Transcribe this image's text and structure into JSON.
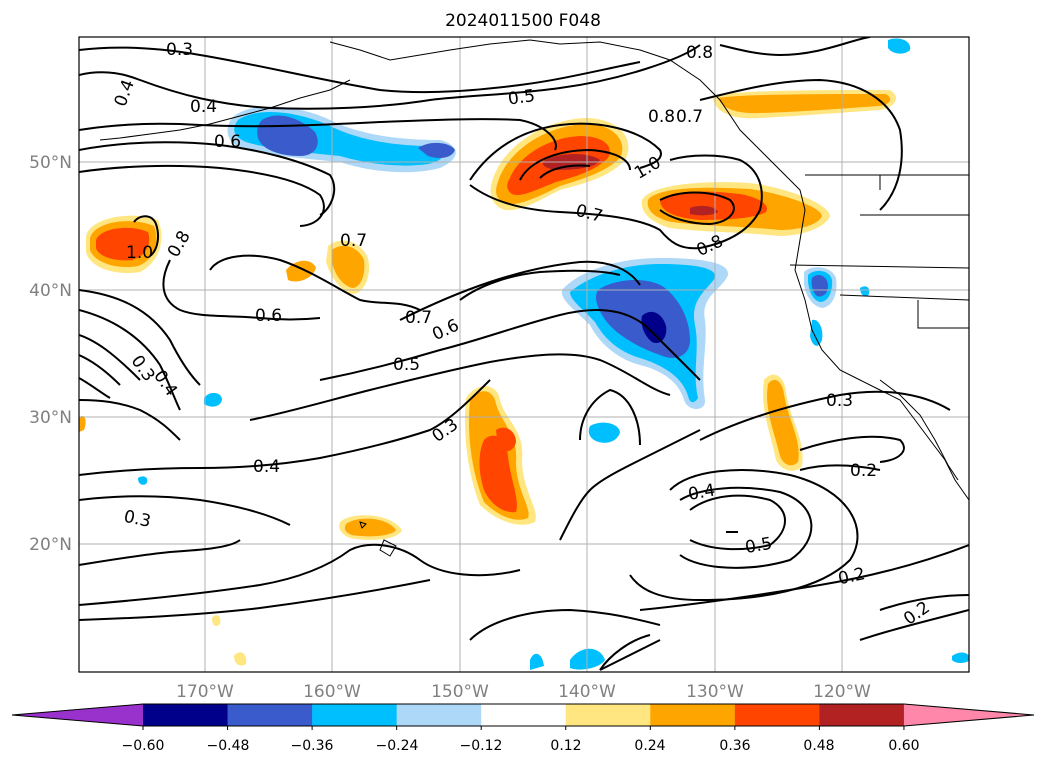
{
  "title": "2024011500 F048",
  "map": {
    "lat_labels": [
      "50°N",
      "40°N",
      "30°N",
      "20°N"
    ],
    "lon_labels": [
      "170°W",
      "160°W",
      "150°W",
      "140°W",
      "130°W",
      "120°W"
    ],
    "contour_labels": [
      "0.3",
      "0.4",
      "0.4",
      "0.6",
      "0.5",
      "0.8",
      "0.8",
      "0.7",
      "1.0",
      "0.7",
      "0.8",
      "1.0",
      "0.8",
      "0.7",
      "0.6",
      "0.7",
      "0.6",
      "0.5",
      "0.3",
      "0.4",
      "0.3",
      "0.4",
      "0.3",
      "0.4",
      "0.2",
      "0.5",
      "0.2",
      "0.2",
      "0.3"
    ]
  },
  "colorbar": {
    "ticks": [
      "−0.60",
      "−0.48",
      "−0.36",
      "−0.24",
      "−0.12",
      "0.12",
      "0.24",
      "0.36",
      "0.48",
      "0.60"
    ],
    "colors": [
      "#9932cc",
      "#00008b",
      "#3a5bcb",
      "#00bfff",
      "#add8f7",
      "#ffffff",
      "#ffe680",
      "#ffa500",
      "#ff4500",
      "#b22222",
      "#ff88aa"
    ]
  },
  "colors": {
    "dark_blue": "#00008b",
    "blue": "#3a5bcb",
    "cyan": "#00bfff",
    "light_blue": "#add8f7",
    "light_yellow": "#ffe680",
    "orange": "#ffa500",
    "red_orange": "#ff4500",
    "dark_red": "#b22222",
    "grid": "#b0b0b0",
    "axis_label": "#808080"
  }
}
